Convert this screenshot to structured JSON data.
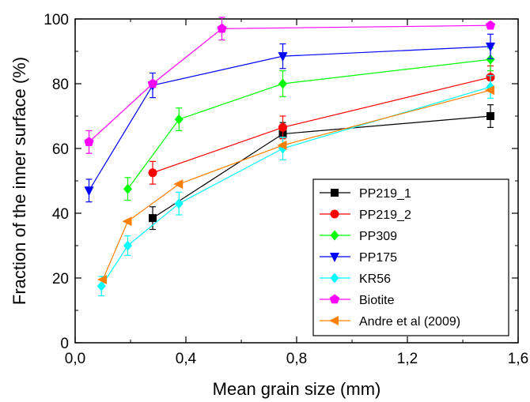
{
  "chart_data": {
    "type": "line",
    "xlabel": "Mean grain size (mm)",
    "ylabel": "Fraction of the inner surface (%)",
    "xlim": [
      0.0,
      1.6
    ],
    "ylim": [
      0,
      100
    ],
    "x_ticks": [
      "0,0",
      "0,4",
      "0,8",
      "1,2",
      "1,6"
    ],
    "y_ticks": [
      "0",
      "20",
      "40",
      "60",
      "80",
      "100"
    ],
    "grid": false,
    "legend_position": "bottom-right",
    "series": [
      {
        "name": "PP219_1",
        "color": "#000000",
        "marker": "square",
        "x": [
          0.28,
          0.75,
          1.5
        ],
        "y": [
          38.5,
          64.5,
          70
        ],
        "err": [
          3.5,
          3.5,
          3.5
        ]
      },
      {
        "name": "PP219_2",
        "color": "#ff0000",
        "marker": "circle",
        "x": [
          0.28,
          0.75,
          1.5
        ],
        "y": [
          52.5,
          66.5,
          82
        ],
        "err": [
          3.5,
          3.5,
          3.5
        ]
      },
      {
        "name": "PP309",
        "color": "#00ff00",
        "marker": "diamond",
        "x": [
          0.19,
          0.375,
          0.75,
          1.5
        ],
        "y": [
          47.5,
          69,
          80,
          87.5
        ],
        "err": [
          3.5,
          3.5,
          4,
          3.5
        ]
      },
      {
        "name": "PP175",
        "color": "#0000ff",
        "marker": "triangle-down",
        "x": [
          0.05,
          0.28,
          0.75,
          1.5
        ],
        "y": [
          47,
          79.5,
          88.5,
          91.5
        ],
        "err": [
          3.5,
          3.8,
          3.8,
          3.8
        ]
      },
      {
        "name": "KR56",
        "color": "#00ffff",
        "marker": "diamond",
        "x": [
          0.095,
          0.19,
          0.375,
          0.75,
          1.5
        ],
        "y": [
          17.5,
          30,
          43,
          60,
          79
        ],
        "err": [
          3,
          3,
          3.5,
          3.5,
          3.5
        ]
      },
      {
        "name": "Biotite",
        "color": "#ff00ff",
        "marker": "pentagon",
        "x": [
          0.05,
          0.28,
          0.53,
          1.5
        ],
        "y": [
          62,
          80,
          97,
          98
        ],
        "err": [
          3.5,
          0,
          3.5,
          0
        ]
      },
      {
        "name": "Andre et al (2009)",
        "color": "#ff7f00",
        "marker": "triangle-left",
        "x": [
          0.1,
          0.19,
          0.375,
          0.75,
          1.5
        ],
        "y": [
          19.5,
          37.5,
          49,
          61,
          78
        ],
        "err": [
          0,
          0,
          0,
          0,
          0
        ]
      }
    ]
  }
}
